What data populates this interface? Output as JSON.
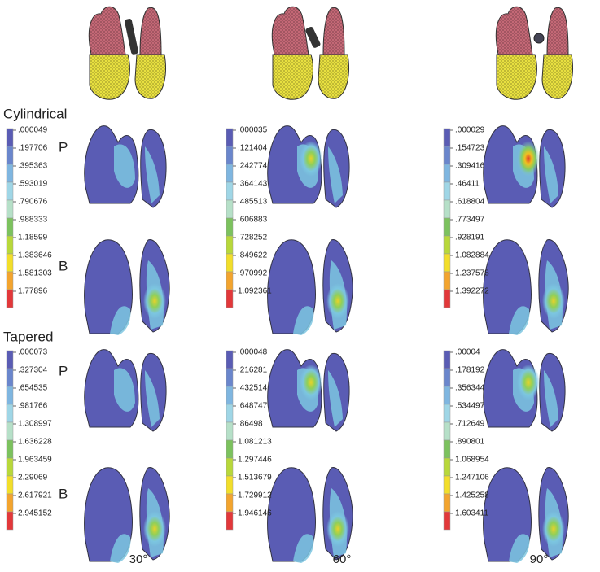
{
  "row_labels": [
    "Cylindrical",
    "Tapered"
  ],
  "view_labels": [
    "P",
    "B"
  ],
  "column_labels": [
    "30°",
    "60°",
    "90°"
  ],
  "legends": [
    [
      ".000049",
      ".197706",
      ".395363",
      ".593019",
      ".790676",
      ".988333",
      "1.18599",
      "1.383646",
      "1.581303",
      "1.77896"
    ],
    [
      ".000035",
      ".121404",
      ".242774",
      ".364143",
      ".485513",
      ".606883",
      ".728252",
      ".849622",
      ".970992",
      "1.092361"
    ],
    [
      ".000029",
      ".154723",
      ".309416",
      ".46411",
      ".618804",
      ".773497",
      ".928191",
      "1.082884",
      "1.237578",
      "1.392272"
    ],
    [
      ".000073",
      ".327304",
      ".654535",
      ".981766",
      "1.308997",
      "1.636228",
      "1.963459",
      "2.29069",
      "2.617921",
      "2.945152"
    ],
    [
      ".000048",
      ".216281",
      ".432514",
      ".648747",
      ".86498",
      "1.081213",
      "1.297446",
      "1.513679",
      "1.729912",
      "1.946146"
    ],
    [
      ".00004",
      ".178192",
      ".356344",
      ".534497",
      ".712649",
      ".890801",
      "1.068954",
      "1.247106",
      "1.425258",
      "1.603411"
    ]
  ]
}
